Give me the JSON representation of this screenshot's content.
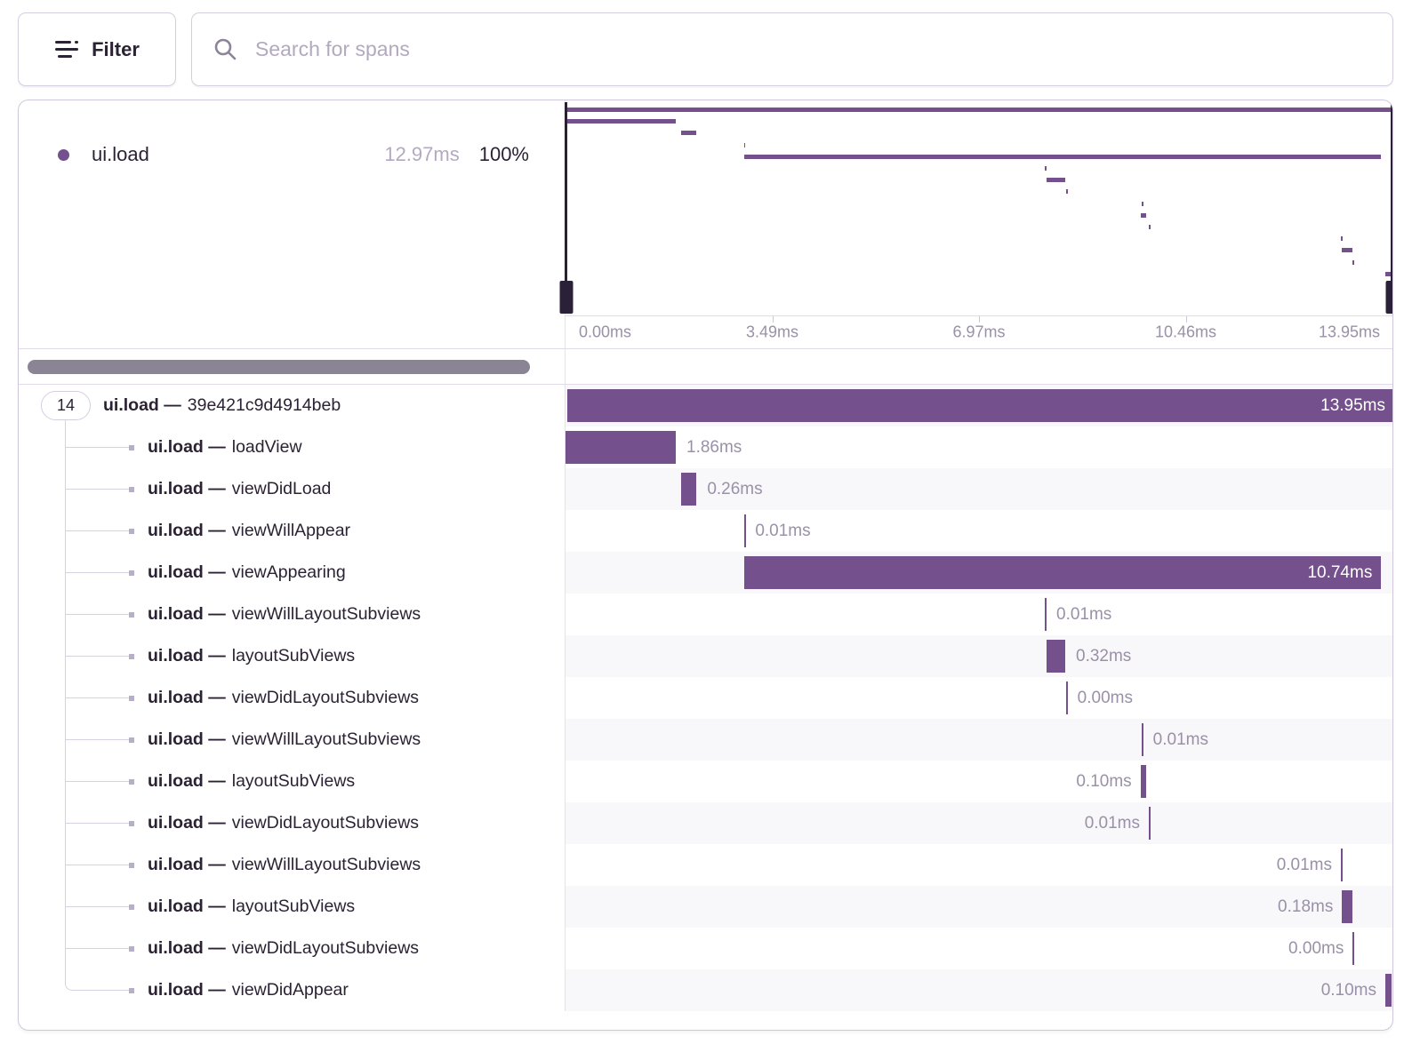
{
  "toolbar": {
    "filter_label": "Filter",
    "search_placeholder": "Search for spans"
  },
  "legend": {
    "op": "ui.load",
    "duration": "12.97ms",
    "percent": "100%"
  },
  "axis_ticks": [
    "0.00ms",
    "3.49ms",
    "6.97ms",
    "10.46ms",
    "13.95ms"
  ],
  "timeline_total_ms": 13.95,
  "root_badge_count": "14",
  "op_separator": "—",
  "spans": [
    {
      "op": "ui.load",
      "name": "39e421c9d4914beb",
      "duration_label": "13.95ms",
      "start_ms": 0,
      "duration_ms": 13.95,
      "label_side": "inside",
      "depth": 0
    },
    {
      "op": "ui.load",
      "name": "loadView",
      "duration_label": "1.86ms",
      "start_ms": 0,
      "duration_ms": 1.86,
      "label_side": "right",
      "depth": 1
    },
    {
      "op": "ui.load",
      "name": "viewDidLoad",
      "duration_label": "0.26ms",
      "start_ms": 1.95,
      "duration_ms": 0.26,
      "label_side": "right",
      "depth": 1
    },
    {
      "op": "ui.load",
      "name": "viewWillAppear",
      "duration_label": "0.01ms",
      "start_ms": 3.01,
      "duration_ms": 0.01,
      "label_side": "right",
      "depth": 1
    },
    {
      "op": "ui.load",
      "name": "viewAppearing",
      "duration_label": "10.74ms",
      "start_ms": 3.02,
      "duration_ms": 10.74,
      "label_side": "inside",
      "depth": 1
    },
    {
      "op": "ui.load",
      "name": "viewWillLayoutSubviews",
      "duration_label": "0.01ms",
      "start_ms": 8.09,
      "duration_ms": 0.01,
      "label_side": "right",
      "depth": 1
    },
    {
      "op": "ui.load",
      "name": "layoutSubViews",
      "duration_label": "0.32ms",
      "start_ms": 8.11,
      "duration_ms": 0.32,
      "label_side": "right",
      "depth": 1
    },
    {
      "op": "ui.load",
      "name": "viewDidLayoutSubviews",
      "duration_label": "0.00ms",
      "start_ms": 8.45,
      "duration_ms": 0.005,
      "label_side": "right",
      "depth": 1
    },
    {
      "op": "ui.load",
      "name": "viewWillLayoutSubviews",
      "duration_label": "0.01ms",
      "start_ms": 9.72,
      "duration_ms": 0.01,
      "label_side": "right",
      "depth": 1
    },
    {
      "op": "ui.load",
      "name": "layoutSubViews",
      "duration_label": "0.10ms",
      "start_ms": 9.7,
      "duration_ms": 0.1,
      "label_side": "left",
      "depth": 1
    },
    {
      "op": "ui.load",
      "name": "viewDidLayoutSubviews",
      "duration_label": "0.01ms",
      "start_ms": 9.84,
      "duration_ms": 0.01,
      "label_side": "left",
      "depth": 1
    },
    {
      "op": "ui.load",
      "name": "viewWillLayoutSubviews",
      "duration_label": "0.01ms",
      "start_ms": 13.08,
      "duration_ms": 0.01,
      "label_side": "left",
      "depth": 1
    },
    {
      "op": "ui.load",
      "name": "layoutSubViews",
      "duration_label": "0.18ms",
      "start_ms": 13.1,
      "duration_ms": 0.18,
      "label_side": "left",
      "depth": 1
    },
    {
      "op": "ui.load",
      "name": "viewDidLayoutSubviews",
      "duration_label": "0.00ms",
      "start_ms": 13.28,
      "duration_ms": 0.005,
      "label_side": "left",
      "depth": 1
    },
    {
      "op": "ui.load",
      "name": "viewDidAppear",
      "duration_label": "0.10ms",
      "start_ms": 13.83,
      "duration_ms": 0.1,
      "label_side": "left",
      "depth": 1
    }
  ],
  "colors": {
    "span_purple": "#74508c",
    "dark_text": "#2b2233",
    "muted_text": "#9a91a8",
    "stripe": "#f8f7fa",
    "border": "#e0dbe7",
    "handle": "#2a2138"
  }
}
